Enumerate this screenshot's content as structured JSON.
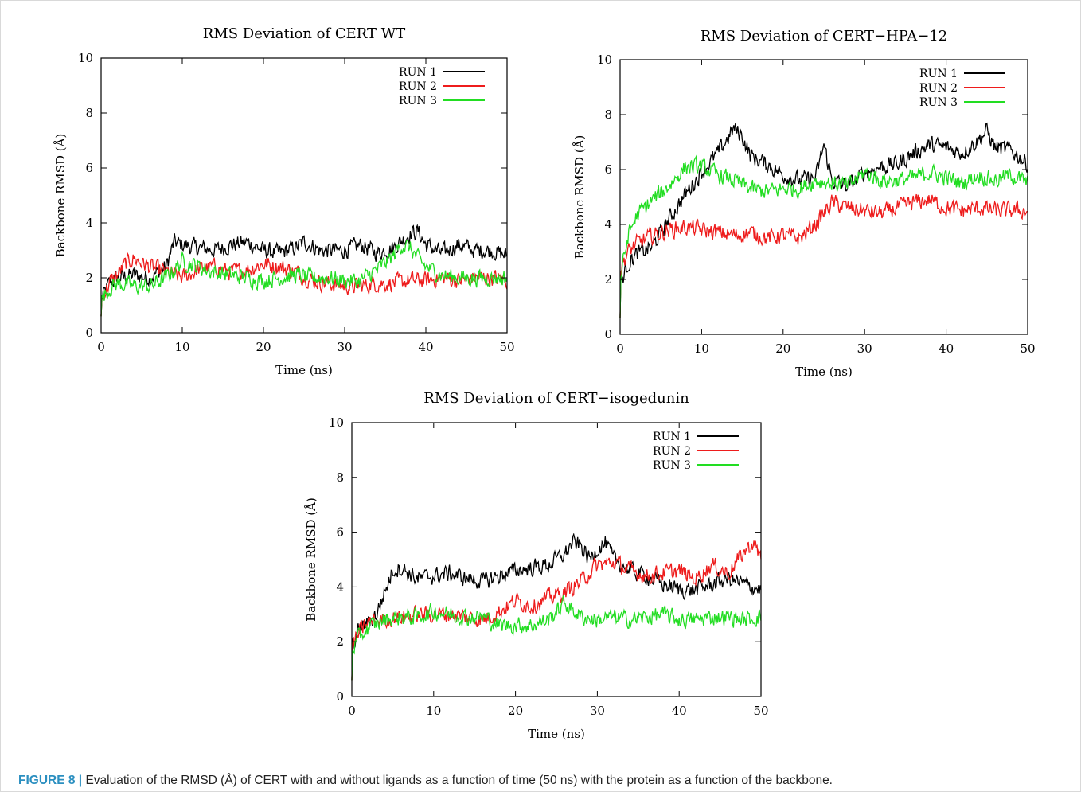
{
  "caption": {
    "label": "FIGURE 8 |",
    "text": " Evaluation of the RMSD (Å) of CERT with and without ligands as a function of time (50 ns) with the protein as a function of the backbone."
  },
  "colors": {
    "RUN 1": "#000000",
    "RUN 2": "#ee1c1c",
    "RUN 3": "#22dd22"
  },
  "chart_data": [
    {
      "type": "line",
      "title": "RMS Deviation of CERT WT",
      "xlabel": "Time (ns)",
      "ylabel": "Backbone RMSD (Å)",
      "xlim": [
        0,
        50
      ],
      "ylim": [
        0,
        10
      ],
      "xticks": [
        0,
        10,
        20,
        30,
        40,
        50
      ],
      "yticks": [
        0,
        2,
        4,
        6,
        8,
        10
      ],
      "grid": false,
      "legend": "top-right",
      "series": [
        {
          "name": "RUN 1",
          "x": [
            0,
            1,
            2,
            4,
            6,
            8,
            9,
            10,
            12,
            14,
            16,
            18,
            20,
            22,
            24,
            25,
            27,
            30,
            32,
            34,
            36,
            38,
            39,
            40,
            42,
            44,
            46,
            48,
            50
          ],
          "y": [
            1.2,
            1.8,
            2.0,
            2.1,
            2.0,
            2.4,
            3.3,
            3.2,
            3.1,
            3.0,
            3.2,
            3.3,
            3.0,
            2.9,
            3.1,
            3.3,
            3.0,
            3.0,
            3.2,
            2.9,
            3.1,
            3.6,
            3.7,
            3.2,
            2.9,
            3.2,
            3.0,
            3.0,
            2.8
          ]
        },
        {
          "name": "RUN 2",
          "x": [
            0,
            1,
            2,
            3,
            4,
            6,
            8,
            10,
            12,
            14,
            16,
            18,
            20,
            22,
            24,
            26,
            28,
            30,
            32,
            34,
            36,
            38,
            40,
            42,
            44,
            46,
            48,
            50
          ],
          "y": [
            1.2,
            1.8,
            2.1,
            2.5,
            2.7,
            2.4,
            2.2,
            2.0,
            2.3,
            2.4,
            2.2,
            2.3,
            2.5,
            2.4,
            2.2,
            1.9,
            1.8,
            1.7,
            1.7,
            1.8,
            1.8,
            1.9,
            1.9,
            2.0,
            1.9,
            2.0,
            2.0,
            1.9
          ]
        },
        {
          "name": "RUN 3",
          "x": [
            0,
            1,
            2,
            4,
            6,
            8,
            10,
            12,
            14,
            16,
            18,
            20,
            22,
            24,
            26,
            28,
            30,
            32,
            34,
            36,
            37,
            38,
            39,
            40,
            42,
            44,
            46,
            48,
            50
          ],
          "y": [
            1.2,
            1.6,
            1.8,
            1.7,
            1.7,
            2.0,
            2.6,
            2.4,
            2.2,
            2.1,
            2.0,
            1.9,
            2.0,
            2.1,
            2.0,
            2.0,
            1.9,
            1.9,
            2.3,
            2.8,
            3.2,
            3.1,
            2.7,
            2.4,
            2.1,
            2.0,
            2.0,
            2.0,
            2.0
          ]
        }
      ]
    },
    {
      "type": "line",
      "title": "RMS Deviation of CERT−HPA−12",
      "xlabel": "Time (ns)",
      "ylabel": "Backbone RMSD (Å)",
      "xlim": [
        0,
        50
      ],
      "ylim": [
        0,
        10
      ],
      "xticks": [
        0,
        10,
        20,
        30,
        40,
        50
      ],
      "yticks": [
        0,
        2,
        4,
        6,
        8,
        10
      ],
      "grid": false,
      "legend": "top-right",
      "series": [
        {
          "name": "RUN 1",
          "x": [
            0,
            1,
            2,
            4,
            6,
            8,
            10,
            12,
            14,
            15,
            16,
            18,
            20,
            22,
            24,
            25,
            26,
            28,
            30,
            32,
            34,
            36,
            38,
            40,
            42,
            44,
            45,
            46,
            48,
            50
          ],
          "y": [
            1.8,
            2.6,
            2.9,
            3.2,
            4.2,
            5.1,
            5.9,
            6.6,
            7.5,
            7.2,
            6.5,
            6.2,
            5.8,
            5.6,
            5.7,
            6.9,
            5.6,
            5.4,
            5.9,
            6.1,
            6.2,
            6.6,
            6.9,
            6.8,
            6.6,
            7.1,
            7.4,
            6.8,
            6.7,
            6.2
          ]
        },
        {
          "name": "RUN 2",
          "x": [
            0,
            1,
            2,
            4,
            6,
            8,
            10,
            12,
            14,
            16,
            18,
            20,
            22,
            24,
            26,
            28,
            30,
            32,
            34,
            36,
            38,
            40,
            42,
            44,
            46,
            48,
            50
          ],
          "y": [
            2.4,
            3.0,
            3.3,
            3.6,
            3.8,
            3.9,
            3.8,
            3.7,
            3.6,
            3.7,
            3.5,
            3.6,
            3.5,
            4.0,
            4.8,
            4.6,
            4.5,
            4.4,
            4.6,
            4.8,
            4.9,
            4.6,
            4.5,
            4.6,
            4.5,
            4.5,
            4.5
          ]
        },
        {
          "name": "RUN 3",
          "x": [
            0,
            1,
            2,
            4,
            6,
            8,
            10,
            12,
            14,
            16,
            18,
            20,
            22,
            24,
            26,
            28,
            30,
            32,
            34,
            36,
            38,
            40,
            42,
            44,
            46,
            48,
            50
          ],
          "y": [
            2.0,
            3.6,
            4.3,
            4.9,
            5.4,
            6.1,
            6.1,
            5.8,
            5.6,
            5.3,
            5.2,
            5.3,
            5.3,
            5.6,
            5.5,
            5.4,
            5.9,
            5.6,
            5.6,
            5.7,
            5.9,
            5.7,
            5.5,
            5.8,
            5.6,
            5.8,
            5.5
          ]
        }
      ]
    },
    {
      "type": "line",
      "title": "RMS Deviation of CERT−isogedunin",
      "xlabel": "Time (ns)",
      "ylabel": "Backbone RMSD (Å)",
      "xlim": [
        0,
        50
      ],
      "ylim": [
        0,
        10
      ],
      "xticks": [
        0,
        10,
        20,
        30,
        40,
        50
      ],
      "yticks": [
        0,
        2,
        4,
        6,
        8,
        10
      ],
      "grid": false,
      "legend": "top-right",
      "series": [
        {
          "name": "RUN 1",
          "x": [
            0,
            1,
            2,
            3,
            4,
            5,
            6,
            8,
            10,
            12,
            14,
            16,
            18,
            20,
            22,
            24,
            26,
            27,
            28,
            29,
            30,
            31,
            32,
            34,
            36,
            38,
            40,
            42,
            44,
            46,
            48,
            50
          ],
          "y": [
            1.8,
            2.5,
            2.7,
            3.0,
            3.8,
            4.6,
            4.7,
            4.3,
            4.4,
            4.5,
            4.3,
            4.2,
            4.4,
            4.6,
            4.7,
            4.8,
            5.2,
            5.6,
            5.5,
            5.0,
            5.4,
            5.6,
            5.0,
            4.6,
            4.4,
            4.1,
            3.9,
            3.9,
            4.1,
            4.3,
            4.1,
            3.9
          ]
        },
        {
          "name": "RUN 2",
          "x": [
            0,
            1,
            2,
            4,
            6,
            8,
            10,
            12,
            14,
            16,
            18,
            20,
            22,
            24,
            26,
            28,
            30,
            32,
            34,
            36,
            38,
            40,
            42,
            44,
            46,
            48,
            49,
            50
          ],
          "y": [
            1.8,
            2.4,
            2.7,
            2.8,
            2.9,
            3.0,
            3.0,
            3.0,
            2.9,
            2.8,
            3.1,
            3.5,
            3.3,
            3.6,
            3.8,
            4.2,
            4.8,
            4.9,
            4.6,
            4.4,
            4.5,
            4.6,
            4.3,
            4.8,
            4.5,
            5.3,
            5.6,
            5.1
          ]
        },
        {
          "name": "RUN 3",
          "x": [
            0,
            1,
            2,
            4,
            6,
            8,
            10,
            12,
            14,
            16,
            18,
            20,
            22,
            24,
            26,
            28,
            30,
            32,
            34,
            36,
            38,
            40,
            42,
            44,
            46,
            48,
            50
          ],
          "y": [
            1.7,
            2.2,
            2.5,
            2.8,
            2.9,
            2.9,
            3.1,
            3.0,
            2.9,
            2.9,
            2.6,
            2.6,
            2.6,
            2.8,
            3.4,
            2.9,
            2.8,
            2.9,
            2.8,
            2.9,
            3.0,
            2.8,
            2.8,
            2.9,
            2.9,
            2.8,
            2.9
          ]
        }
      ]
    }
  ]
}
